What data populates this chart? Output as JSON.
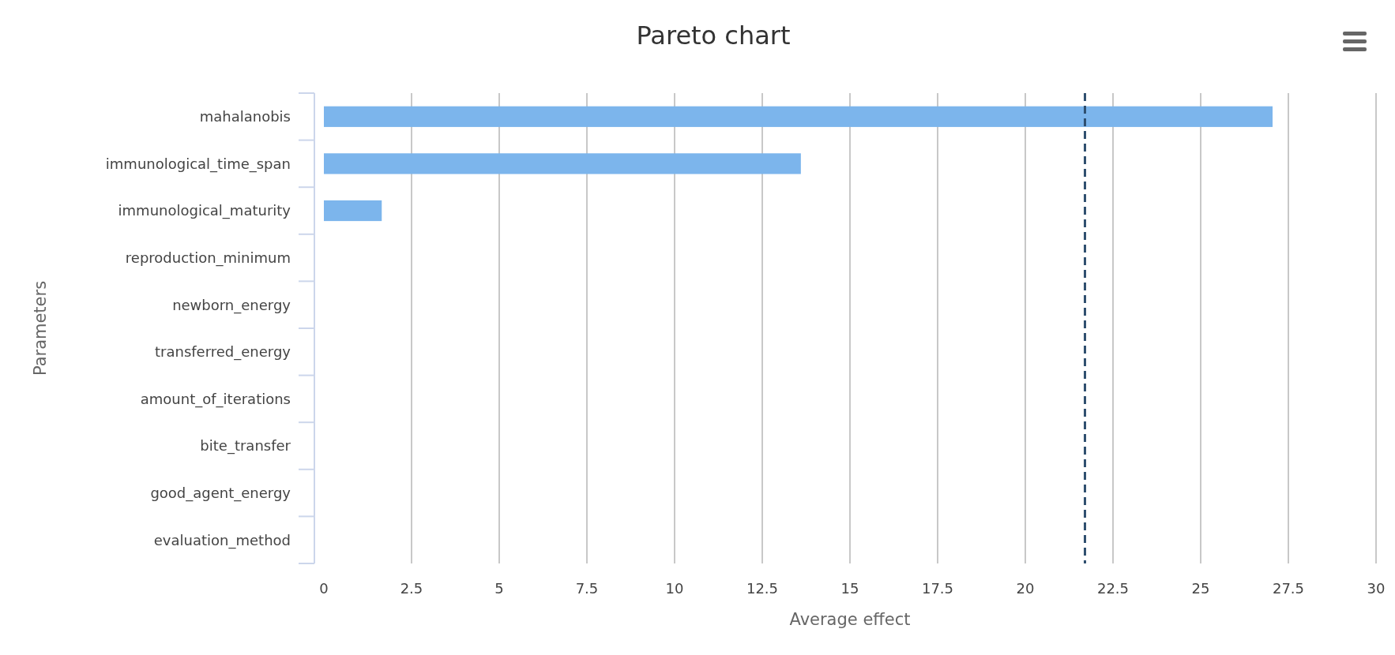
{
  "chart_data": {
    "type": "bar",
    "orientation": "horizontal",
    "title": "Pareto chart",
    "xlabel": "Average effect",
    "ylabel": "Parameters",
    "categories": [
      "mahalanobis",
      "immunological_time_span",
      "immunological_maturity",
      "reproduction_minimum",
      "newborn_energy",
      "transferred_energy",
      "amount_of_iterations",
      "bite_transfer",
      "good_agent_energy",
      "evaluation_method"
    ],
    "values": [
      27.05,
      13.6,
      1.65,
      0,
      0,
      0,
      0,
      0,
      0,
      0
    ],
    "color": "#7cb5ec",
    "xlim": [
      0,
      30
    ],
    "xticks": [
      0,
      2.5,
      5,
      7.5,
      10,
      12.5,
      15,
      17.5,
      20,
      22.5,
      25,
      27.5,
      30
    ],
    "grid": "x",
    "ref_lines": [
      {
        "axis": "x",
        "value": 21.7,
        "color": "#2f4f6f",
        "line_style": "dashed"
      }
    ]
  }
}
